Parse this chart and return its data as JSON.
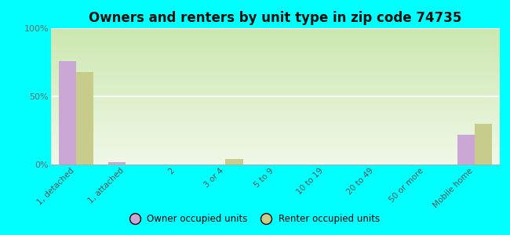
{
  "title": "Owners and renters by unit type in zip code 74735",
  "categories": [
    "1, detached",
    "1, attached",
    "2",
    "3 or 4",
    "5 to 9",
    "10 to 19",
    "20 to 49",
    "50 or more",
    "Mobile home"
  ],
  "owner_values": [
    76,
    2,
    0,
    0,
    0,
    0,
    0,
    0,
    22
  ],
  "renter_values": [
    68,
    0,
    0,
    4,
    0,
    0,
    0,
    0,
    30
  ],
  "owner_color": "#c9a8d5",
  "renter_color": "#c8cc8a",
  "background_color": "#00ffff",
  "ylim": [
    0,
    100
  ],
  "yticks": [
    0,
    50,
    100
  ],
  "ytick_labels": [
    "0%",
    "50%",
    "100%"
  ],
  "legend_owner": "Owner occupied units",
  "legend_renter": "Renter occupied units",
  "bar_width": 0.35,
  "title_fontsize": 12
}
